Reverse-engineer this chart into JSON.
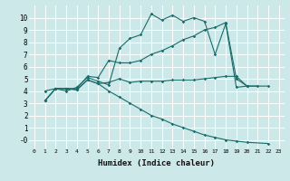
{
  "xlabel": "Humidex (Indice chaleur)",
  "bg_color": "#cce8e8",
  "grid_color": "#ffffff",
  "line_color": "#1a6b6b",
  "xlim": [
    -0.5,
    23.5
  ],
  "ylim": [
    -0.7,
    11.0
  ],
  "xticks": [
    0,
    1,
    2,
    3,
    4,
    5,
    6,
    7,
    8,
    9,
    10,
    11,
    12,
    13,
    14,
    15,
    16,
    17,
    18,
    19,
    20,
    21,
    22,
    23
  ],
  "yticks": [
    0,
    1,
    2,
    3,
    4,
    5,
    6,
    7,
    8,
    9,
    10
  ],
  "ytick_labels": [
    "-0",
    "1",
    "2",
    "3",
    "4",
    "5",
    "6",
    "7",
    "8",
    "9",
    "10"
  ],
  "line1_x": [
    1,
    2,
    3,
    4,
    5,
    6,
    7,
    8,
    9,
    10,
    11,
    12,
    13,
    14,
    15,
    16,
    17,
    18,
    19,
    20
  ],
  "line1_y": [
    4.0,
    4.2,
    4.0,
    4.3,
    5.1,
    4.8,
    4.5,
    7.5,
    8.3,
    8.6,
    10.3,
    9.8,
    10.2,
    9.7,
    10.0,
    9.7,
    7.0,
    9.5,
    4.3,
    4.4
  ],
  "line2_x": [
    1,
    2,
    3,
    4,
    5,
    6,
    7,
    8,
    9,
    10,
    11,
    12,
    13,
    14,
    15,
    16,
    17,
    18,
    19,
    20,
    22
  ],
  "line2_y": [
    3.2,
    4.2,
    4.2,
    4.2,
    5.2,
    5.1,
    6.5,
    6.3,
    6.3,
    6.5,
    7.0,
    7.3,
    7.7,
    8.2,
    8.5,
    9.0,
    9.2,
    9.6,
    5.0,
    4.4,
    4.4
  ],
  "line3_x": [
    1,
    2,
    3,
    4,
    5,
    6,
    7,
    8,
    9,
    10,
    11,
    12,
    13,
    14,
    15,
    16,
    17,
    18,
    19,
    20,
    21
  ],
  "line3_y": [
    3.2,
    4.2,
    4.2,
    4.1,
    4.9,
    4.6,
    4.7,
    5.0,
    4.7,
    4.8,
    4.8,
    4.8,
    4.9,
    4.9,
    4.9,
    5.0,
    5.1,
    5.2,
    5.2,
    4.4,
    4.4
  ],
  "line4_x": [
    1,
    2,
    3,
    4,
    5,
    6,
    7,
    8,
    9,
    10,
    11,
    12,
    13,
    14,
    15,
    16,
    17,
    18,
    19,
    20,
    22
  ],
  "line4_y": [
    3.2,
    4.2,
    4.2,
    4.1,
    4.9,
    4.6,
    4.0,
    3.5,
    3.0,
    2.5,
    2.0,
    1.7,
    1.3,
    1.0,
    0.7,
    0.4,
    0.2,
    0.0,
    -0.1,
    -0.2,
    -0.3
  ]
}
